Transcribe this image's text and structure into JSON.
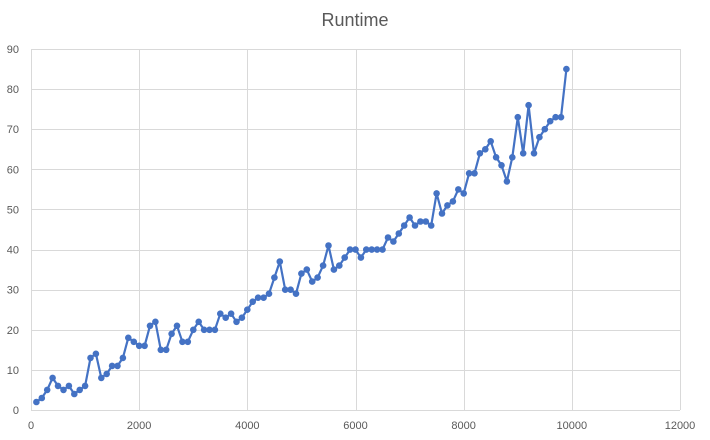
{
  "chart_data": {
    "type": "scatter",
    "title": "Runtime",
    "xlabel": "",
    "ylabel": "",
    "xlim": [
      0,
      12000
    ],
    "ylim": [
      0,
      90
    ],
    "x_ticks": [
      0,
      2000,
      4000,
      6000,
      8000,
      10000,
      12000
    ],
    "y_ticks": [
      0,
      10,
      20,
      30,
      40,
      50,
      60,
      70,
      80,
      90
    ],
    "grid": true,
    "legend": "none",
    "series_color": "#4472c4",
    "grid_color": "#d9d9d9",
    "series": [
      {
        "x": [
          100,
          200,
          300,
          400,
          500,
          600,
          700,
          800,
          900,
          1000,
          1100,
          1200,
          1300,
          1400,
          1500,
          1600,
          1700,
          1800,
          1900,
          2000,
          2100,
          2200,
          2300,
          2400,
          2500,
          2600,
          2700,
          2800,
          2900,
          3000,
          3100,
          3200,
          3300,
          3400,
          3500,
          3600,
          3700,
          3800,
          3900,
          4000,
          4100,
          4200,
          4300,
          4400,
          4500,
          4600,
          4700,
          4800,
          4900,
          5000,
          5100,
          5200,
          5300,
          5400,
          5500,
          5600,
          5700,
          5800,
          5900,
          6000,
          6100,
          6200,
          6300,
          6400,
          6500,
          6600,
          6700,
          6800,
          6900,
          7000,
          7100,
          7200,
          7300,
          7400,
          7500,
          7600,
          7700,
          7800,
          7900,
          8000,
          8100,
          8200,
          8300,
          8400,
          8500,
          8600,
          8700,
          8800,
          8900,
          9000,
          9100,
          9200,
          9300,
          9400,
          9500,
          9600,
          9700,
          9800,
          9900
        ],
        "y": [
          2,
          3,
          5,
          8,
          6,
          5,
          6,
          4,
          5,
          6,
          13,
          14,
          8,
          9,
          11,
          11,
          13,
          18,
          17,
          16,
          16,
          21,
          22,
          15,
          15,
          19,
          21,
          17,
          17,
          20,
          22,
          20,
          20,
          20,
          24,
          23,
          24,
          22,
          23,
          25,
          27,
          28,
          28,
          29,
          33,
          37,
          30,
          30,
          29,
          34,
          35,
          32,
          33,
          36,
          41,
          35,
          36,
          38,
          40,
          40,
          38,
          40,
          40,
          40,
          40,
          43,
          42,
          44,
          46,
          48,
          46,
          47,
          47,
          46,
          54,
          49,
          51,
          52,
          55,
          54,
          59,
          59,
          64,
          65,
          67,
          63,
          61,
          57,
          63,
          73,
          64,
          76,
          64,
          68,
          70,
          72,
          73,
          73,
          85
        ]
      }
    ]
  }
}
